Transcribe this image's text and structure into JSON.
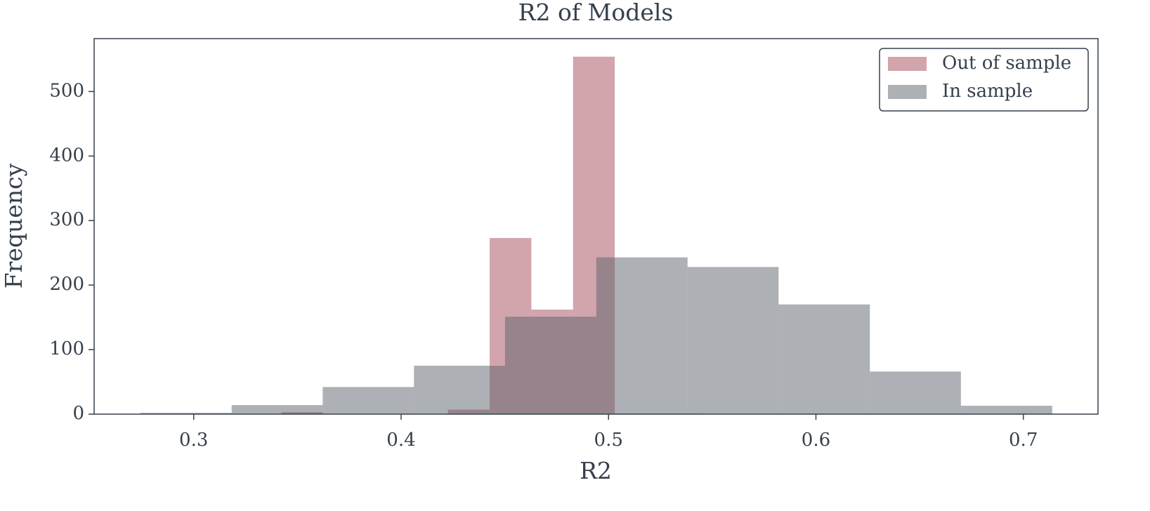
{
  "chart_data": {
    "type": "histogram",
    "title": "R2 of Models",
    "x_label": "R2",
    "y_label": "Frequency",
    "series": [
      {
        "name": "Out of sample",
        "color": "#a54c5c",
        "bins": [
          0.3423,
          0.3624,
          0.3825,
          0.4025,
          0.4226,
          0.4427,
          0.4628,
          0.4829,
          0.503,
          0.5231,
          0.5432
        ],
        "values": [
          3,
          0,
          0,
          0,
          7,
          273,
          162,
          554,
          1,
          1
        ]
      },
      {
        "name": "In sample",
        "color": "#5c6269",
        "bins": [
          0.2743,
          0.3183,
          0.3622,
          0.4062,
          0.4501,
          0.4941,
          0.5381,
          0.582,
          0.626,
          0.6699,
          0.7139
        ],
        "values": [
          2,
          14,
          42,
          75,
          151,
          243,
          228,
          170,
          66,
          13
        ]
      }
    ],
    "xlim": [
      0.252,
      0.736
    ],
    "ylim": [
      0,
      582
    ],
    "xticks": [
      0.3,
      0.4,
      0.5,
      0.6,
      0.7
    ],
    "yticks": [
      0,
      100,
      200,
      300,
      400,
      500
    ],
    "legend": "upper right"
  }
}
